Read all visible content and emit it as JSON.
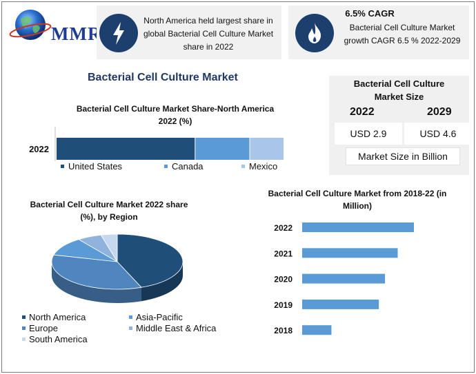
{
  "brand": {
    "logo_text": "MMR"
  },
  "cards": [
    {
      "icon": "lightning-bolt-icon",
      "text": "North America held largest share in global Bacterial Cell Culture Market share in 2022"
    },
    {
      "icon": "flame-icon",
      "heading": "6.5% CAGR",
      "text": "Bacterial Cell Culture Market growth CAGR 6.5 % 2022-2029"
    }
  ],
  "main_title": "Bacterial Cell Culture Market",
  "market_size": {
    "title": "Bacterial Cell Culture Market Size",
    "years": [
      "2022",
      "2029"
    ],
    "values": [
      "USD 2.9",
      "USD 4.6"
    ],
    "unit": "Market Size in Billion"
  },
  "colors": {
    "dark_blue": "#1f4e79",
    "mid_blue": "#5b9bd5",
    "light_blue": "#a9c6e8",
    "icon_bg": "#1d3f6e",
    "title_blue": "#1f3864"
  },
  "chart_data": [
    {
      "type": "bar",
      "orientation": "horizontal-stacked",
      "title": "Bacterial Cell Culture Market Share-North America 2022 (%)",
      "categories": [
        "2022"
      ],
      "series": [
        {
          "name": "United States",
          "values": [
            61
          ],
          "color": "#1f4e79"
        },
        {
          "name": "Canada",
          "values": [
            24
          ],
          "color": "#5b9bd5"
        },
        {
          "name": "Mexico",
          "values": [
            15
          ],
          "color": "#a9c6e8"
        }
      ],
      "legend": "bottom"
    },
    {
      "type": "pie",
      "title": "Bacterial Cell Culture Market 2022 share (%), by Region",
      "labels": [
        "North America",
        "Europe",
        "Asia-Pacific",
        "Middle East & Africa",
        "South America"
      ],
      "values": [
        44,
        35,
        11,
        6,
        4
      ],
      "colors": [
        "#1f4e79",
        "#4f86c0",
        "#5b9bd5",
        "#8fb3dc",
        "#c6d8ef"
      ],
      "legend": "bottom"
    },
    {
      "type": "bar",
      "orientation": "horizontal",
      "title": "Bacterial Cell Culture Market from 2018-22 (in Million)",
      "categories": [
        "2022",
        "2021",
        "2020",
        "2019",
        "2018"
      ],
      "values": [
        2900,
        2480,
        2150,
        1990,
        760
      ],
      "color": "#5b9bd5"
    }
  ]
}
